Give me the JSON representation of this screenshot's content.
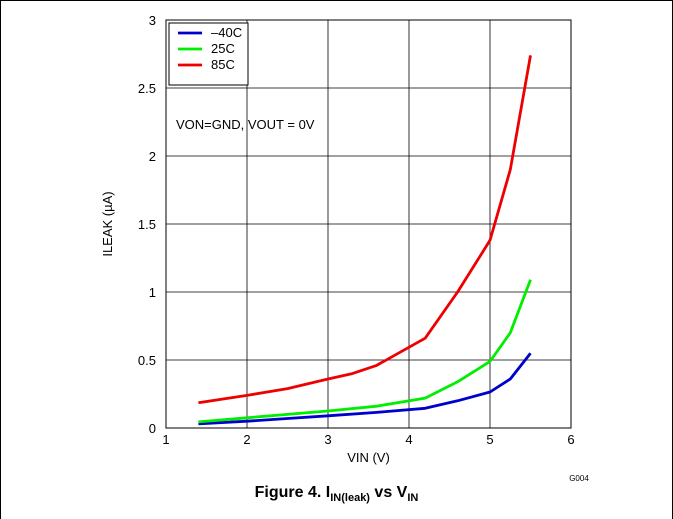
{
  "chart_data": {
    "type": "line",
    "xlabel": "VIN (V)",
    "ylabel": "ILEAK (µA)",
    "xlim": [
      1,
      6
    ],
    "ylim": [
      0,
      3
    ],
    "x_ticks": [
      1,
      2,
      3,
      4,
      5,
      6
    ],
    "y_ticks": [
      0,
      0.5,
      1,
      1.5,
      2,
      2.5,
      3
    ],
    "x_tick_labels": [
      "1",
      "2",
      "3",
      "4",
      "5",
      "6"
    ],
    "y_tick_labels": [
      "0",
      "0.5",
      "1",
      "1.5",
      "2",
      "2.5",
      "3"
    ],
    "grid": true,
    "legend_position": "top-left",
    "annotation": "VON=GND, VOUT = 0V",
    "code": "G004",
    "series": [
      {
        "name": "–40C",
        "color": "#0000cc",
        "points": [
          [
            1.4,
            0.03
          ],
          [
            2.0,
            0.05
          ],
          [
            2.5,
            0.07
          ],
          [
            3.0,
            0.09
          ],
          [
            3.6,
            0.115
          ],
          [
            4.2,
            0.145
          ],
          [
            4.6,
            0.2
          ],
          [
            5.0,
            0.265
          ],
          [
            5.25,
            0.36
          ],
          [
            5.5,
            0.55
          ]
        ]
      },
      {
        "name": "25C",
        "color": "#00ee00",
        "points": [
          [
            1.4,
            0.045
          ],
          [
            2.0,
            0.075
          ],
          [
            2.5,
            0.1
          ],
          [
            3.0,
            0.125
          ],
          [
            3.6,
            0.16
          ],
          [
            4.2,
            0.22
          ],
          [
            4.6,
            0.34
          ],
          [
            5.0,
            0.49
          ],
          [
            5.25,
            0.7
          ],
          [
            5.5,
            1.09
          ]
        ]
      },
      {
        "name": "85C",
        "color": "#ee0000",
        "points": [
          [
            1.4,
            0.185
          ],
          [
            2.0,
            0.24
          ],
          [
            2.5,
            0.29
          ],
          [
            3.0,
            0.36
          ],
          [
            3.3,
            0.4
          ],
          [
            3.6,
            0.46
          ],
          [
            4.2,
            0.66
          ],
          [
            4.6,
            1.0
          ],
          [
            5.0,
            1.38
          ],
          [
            5.25,
            1.9
          ],
          [
            5.5,
            2.74
          ]
        ]
      }
    ]
  },
  "caption": {
    "prefix": "Figure 4. I",
    "sub1": "IN(leak)",
    "middle": " vs V",
    "sub2": "IN"
  }
}
